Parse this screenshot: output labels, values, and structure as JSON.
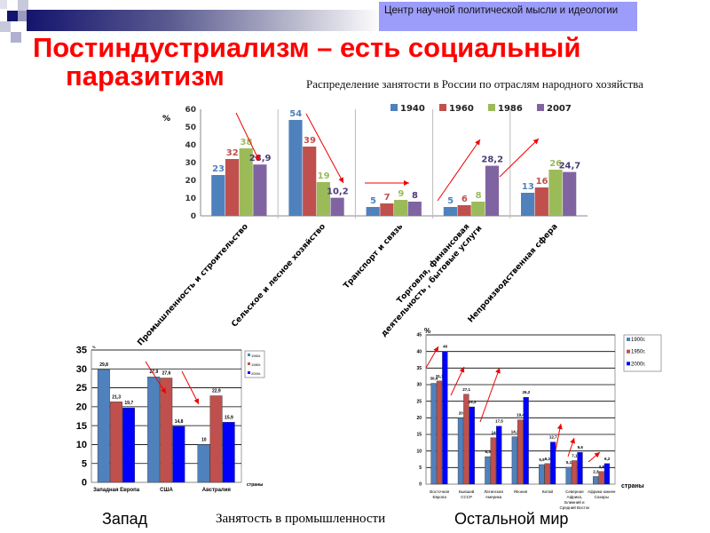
{
  "header": {
    "org_label": "Центр научной политической мысли и идеологии",
    "title_line1": "Постиндустриализм – есть социальный",
    "title_line2": "паразитизм",
    "accent_color": "#ff0000",
    "box_color": "#9c9cfa"
  },
  "captions": {
    "west": "Запад",
    "industry": "Занятость в промышленности",
    "rest": "Остальной мир"
  },
  "chart_data": [
    {
      "type": "bar",
      "title": "Распределение занятости в России по отраслям народного хозяйства",
      "ylabel": "%",
      "ylim": [
        0,
        60
      ],
      "yticks": [
        0,
        10,
        20,
        30,
        40,
        50,
        60
      ],
      "grid": false,
      "legend_position": "top-right",
      "categories": [
        "Промышленность и строительство",
        "Сельское и лесное хозяйство",
        "Транспорт и связь",
        "Торговля, финансовая деятельность , бытовые услуги",
        "Непроизводственная сфера"
      ],
      "series": [
        {
          "name": "1940",
          "color": "#4f81bd",
          "values": [
            23,
            54,
            5,
            5,
            13
          ],
          "labels": [
            "23",
            "54",
            "5",
            "5",
            "13"
          ]
        },
        {
          "name": "1960",
          "color": "#c0504d",
          "values": [
            32,
            39,
            7,
            6,
            16
          ],
          "labels": [
            "32",
            "39",
            "7",
            "6",
            "16"
          ]
        },
        {
          "name": "1986",
          "color": "#9bbb59",
          "values": [
            38,
            19,
            9,
            8,
            26
          ],
          "labels": [
            "38",
            "19",
            "9",
            "8",
            "26"
          ]
        },
        {
          "name": "2007",
          "color": "#8064a2",
          "values": [
            28.9,
            10.2,
            8,
            28.2,
            24.7
          ],
          "labels": [
            "28,9",
            "10,2",
            "8",
            "28,2",
            "24,7"
          ]
        }
      ]
    },
    {
      "type": "bar",
      "ylabel": "%",
      "xlabel": "страны",
      "ylim": [
        0,
        35
      ],
      "yticks": [
        0,
        5,
        10,
        15,
        20,
        25,
        30,
        35
      ],
      "grid": true,
      "legend_position": "right",
      "categories": [
        "Западная Европа",
        "США",
        "Австралия"
      ],
      "series": [
        {
          "name": "1960г.",
          "color": "#4f81bd",
          "values": [
            29.8,
            27.9,
            10
          ],
          "labels": [
            "29,8",
            "27,9",
            "10"
          ]
        },
        {
          "name": "1980г.",
          "color": "#c0504d",
          "values": [
            21.3,
            27.6,
            22.9
          ],
          "labels": [
            "21,3",
            "27,6",
            "22,9"
          ]
        },
        {
          "name": "2000г.",
          "color": "#0000ff",
          "values": [
            19.7,
            14.8,
            15.9
          ],
          "labels": [
            "19,7",
            "14,8",
            "15,9"
          ]
        }
      ]
    },
    {
      "type": "bar",
      "ylabel": "%",
      "xlabel": "страны",
      "ylim": [
        0,
        45
      ],
      "yticks": [
        0,
        5,
        10,
        15,
        20,
        25,
        30,
        35,
        40,
        45
      ],
      "grid": true,
      "legend_position": "right",
      "categories": [
        "Восточная Европа",
        "Бывший СССР",
        "Латинская Америка",
        "Япония",
        "Китай",
        "Северная Африка, Ближний и Средний Восток",
        "Африка южнее Сахары"
      ],
      "series": [
        {
          "name": "1900г.",
          "color": "#4f81bd",
          "values": [
            30.4,
            20,
            8.3,
            14.3,
            5.9,
            5.1,
            2.3
          ],
          "labels": [
            "30,4",
            "20",
            "8,3",
            "14,3",
            "5,9",
            "5,1",
            "2,3"
          ]
        },
        {
          "name": "1950г.",
          "color": "#c0504d",
          "values": [
            31.1,
            27.1,
            14,
            19.4,
            6.2,
            7.1,
            3.8
          ],
          "labels": [
            "31,1",
            "27,1",
            "14",
            "19,4",
            "6,2",
            "7,1",
            "3,8"
          ]
        },
        {
          "name": "2000г.",
          "color": "#0000ff",
          "values": [
            40,
            23.3,
            17.5,
            26.2,
            12.7,
            9.6,
            6.2
          ],
          "labels": [
            "40",
            "23,3",
            "17,5",
            "26,2",
            "12,7",
            "9,6",
            "6,2"
          ]
        }
      ]
    }
  ]
}
